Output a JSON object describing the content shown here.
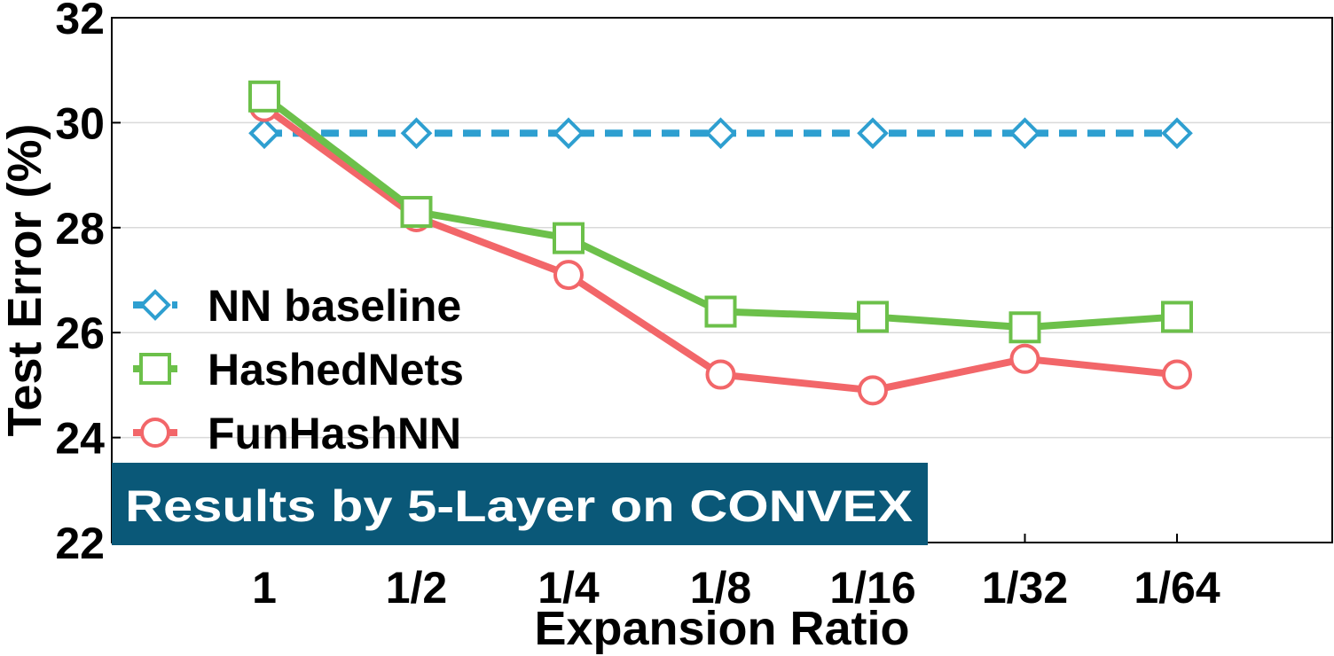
{
  "chart_data": {
    "type": "line",
    "title": "",
    "xlabel": "Expansion Ratio",
    "ylabel": "Test Error (%)",
    "ylim": [
      22,
      32
    ],
    "yticks": [
      22,
      24,
      26,
      28,
      30,
      32
    ],
    "categories": [
      "1",
      "1/2",
      "1/4",
      "1/8",
      "1/16",
      "1/32",
      "1/64"
    ],
    "grid": true,
    "legend_position": "left",
    "series": [
      {
        "name": "NN baseline",
        "color": "#2E9FD0",
        "marker": "diamond",
        "dashed": true,
        "values": [
          29.8,
          29.8,
          29.8,
          29.8,
          29.8,
          29.8,
          29.8
        ]
      },
      {
        "name": "HashedNets",
        "color": "#6CC04A",
        "marker": "square",
        "dashed": false,
        "values": [
          30.5,
          28.3,
          27.8,
          26.4,
          26.3,
          26.1,
          26.3
        ]
      },
      {
        "name": "FunHashNN",
        "color": "#F26669",
        "marker": "circle",
        "dashed": false,
        "values": [
          30.3,
          28.2,
          27.1,
          25.2,
          24.9,
          25.5,
          25.2
        ]
      }
    ],
    "annotation": {
      "text": "Results by 5-Layer on CONVEX",
      "background": "#0A5878"
    }
  }
}
